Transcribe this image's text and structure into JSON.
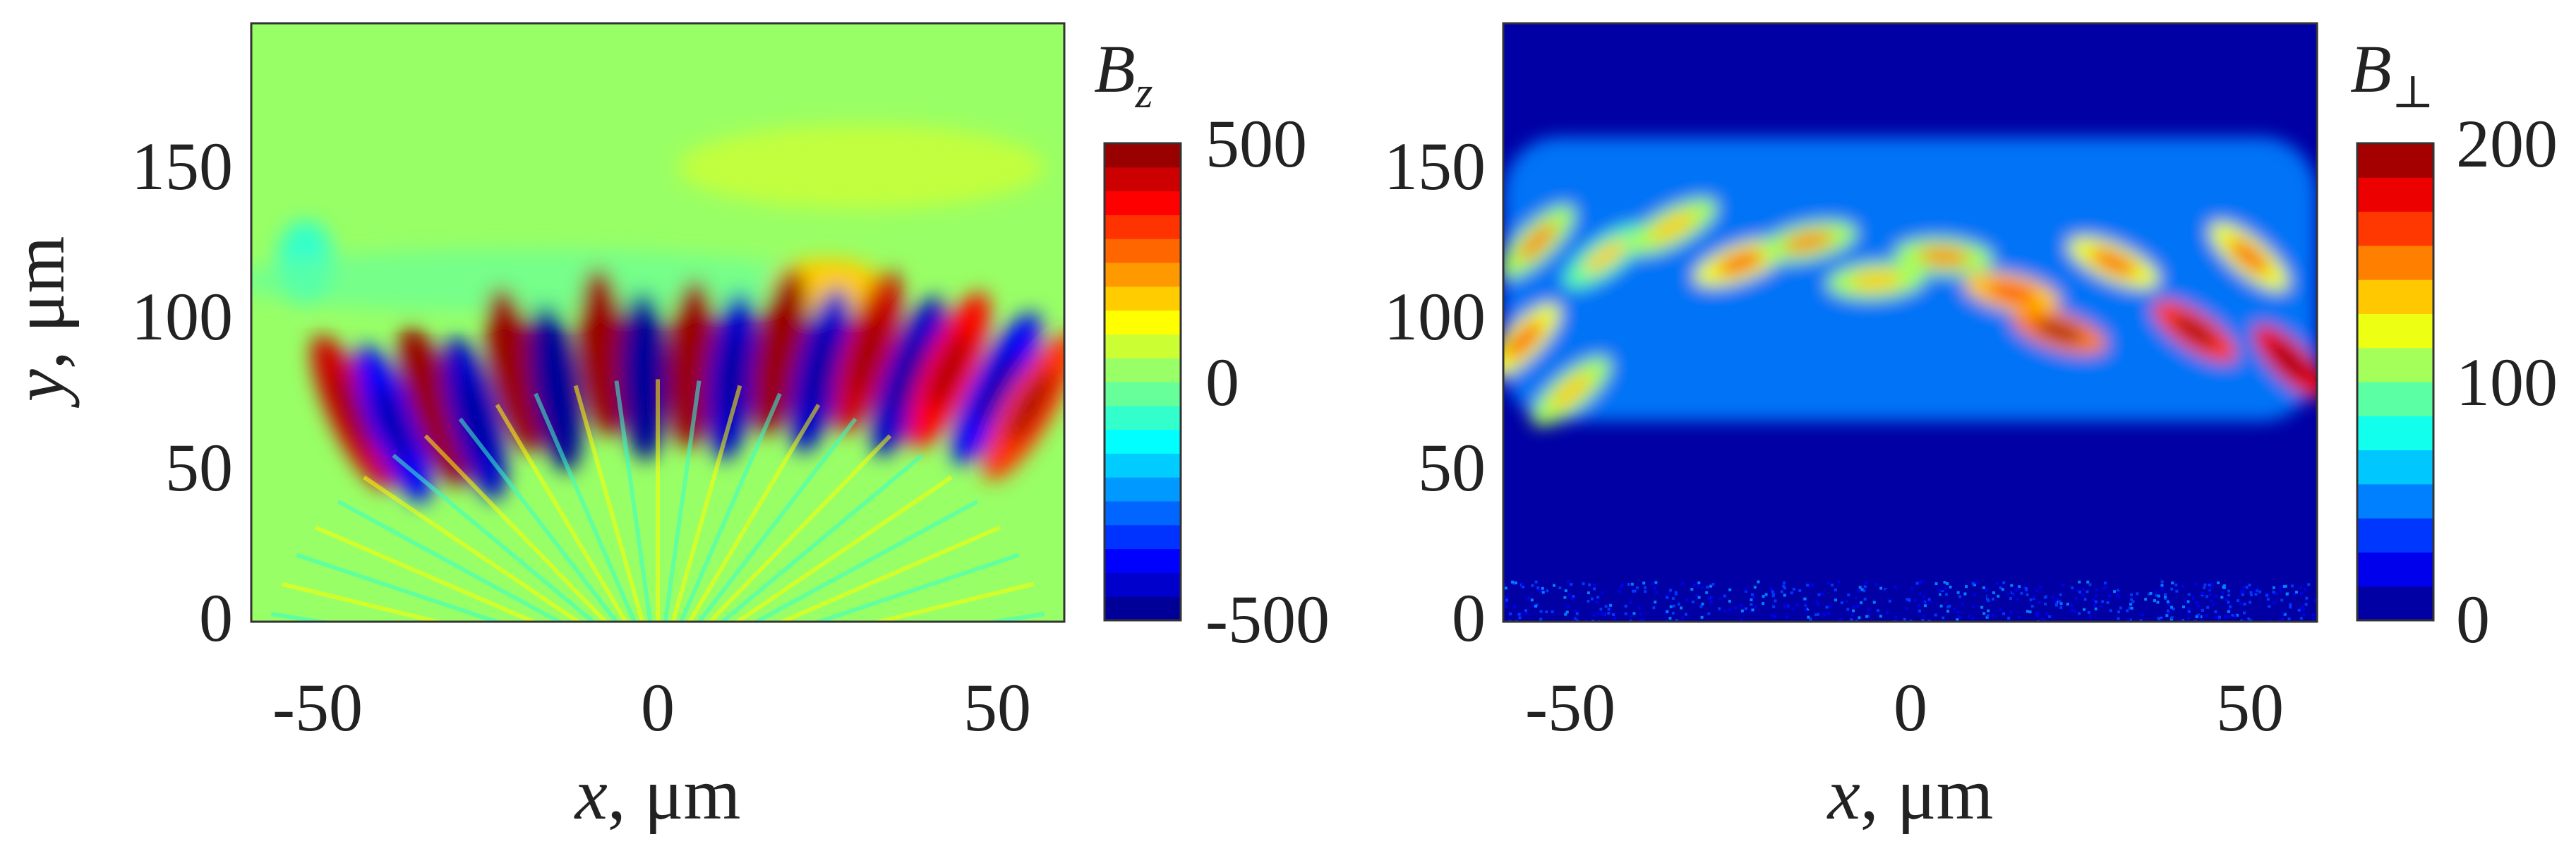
{
  "chart_data": [
    {
      "type": "heatmap",
      "panel": "left",
      "colorbar_title": "B",
      "colorbar_title_sub": "z",
      "colorbar_ticks": [
        "500",
        "0",
        "-500"
      ],
      "colorbar_range": [
        -500,
        500
      ],
      "colorbar_levels": 20,
      "colormap": "jet",
      "xlabel_var": "x",
      "xlabel_unit": ", μm",
      "ylabel_var": "y",
      "ylabel_unit": ", μm",
      "x_ticks": [
        "-50",
        "0",
        "50"
      ],
      "y_ticks": [
        "0",
        "50",
        "100",
        "150"
      ],
      "xlim": [
        -60,
        60
      ],
      "ylim": [
        -2,
        198
      ],
      "background_value": 40,
      "lobes": [
        {
          "x": -45,
          "y": 68,
          "value": 420
        },
        {
          "x": -39,
          "y": 64,
          "value": -380
        },
        {
          "x": -33,
          "y": 70,
          "value": 450
        },
        {
          "x": -27,
          "y": 66,
          "value": -420
        },
        {
          "x": -21,
          "y": 82,
          "value": 480
        },
        {
          "x": -15,
          "y": 76,
          "value": -470
        },
        {
          "x": -8,
          "y": 88,
          "value": 470
        },
        {
          "x": -2,
          "y": 80,
          "value": -460
        },
        {
          "x": 5,
          "y": 84,
          "value": 480
        },
        {
          "x": 11,
          "y": 80,
          "value": -450
        },
        {
          "x": 18,
          "y": 88,
          "value": 470
        },
        {
          "x": 24,
          "y": 82,
          "value": -440
        },
        {
          "x": 31,
          "y": 88,
          "value": 430
        },
        {
          "x": 37,
          "y": 80,
          "value": -420
        },
        {
          "x": 43,
          "y": 82,
          "value": 380
        },
        {
          "x": 50,
          "y": 76,
          "value": -360
        },
        {
          "x": 55,
          "y": 70,
          "value": 300
        }
      ]
    },
    {
      "type": "heatmap",
      "panel": "right",
      "colorbar_title": "B",
      "colorbar_title_sub": "⊥",
      "colorbar_ticks": [
        "200",
        "100",
        "0"
      ],
      "colorbar_range": [
        0,
        200
      ],
      "colorbar_levels": 14,
      "colormap": "jet",
      "xlabel_var": "x",
      "xlabel_unit": ", μm",
      "x_ticks": [
        "-50",
        "0",
        "50"
      ],
      "y_ticks": [
        "0",
        "50",
        "100",
        "150"
      ],
      "xlim": [
        -60,
        60
      ],
      "ylim": [
        -2,
        198
      ],
      "background_value": 0,
      "band_y_range": [
        65,
        160
      ],
      "hotspots": [
        {
          "x": -55,
          "y": 125,
          "value": 110
        },
        {
          "x": -45,
          "y": 120,
          "value": 90
        },
        {
          "x": -35,
          "y": 130,
          "value": 100
        },
        {
          "x": -25,
          "y": 118,
          "value": 120
        },
        {
          "x": -15,
          "y": 125,
          "value": 110
        },
        {
          "x": -5,
          "y": 112,
          "value": 100
        },
        {
          "x": 5,
          "y": 120,
          "value": 110
        },
        {
          "x": 15,
          "y": 108,
          "value": 130
        },
        {
          "x": 22,
          "y": 95,
          "value": 150
        },
        {
          "x": 30,
          "y": 118,
          "value": 120
        },
        {
          "x": 42,
          "y": 95,
          "value": 170
        },
        {
          "x": 50,
          "y": 120,
          "value": 120
        },
        {
          "x": 56,
          "y": 85,
          "value": 180
        },
        {
          "x": -57,
          "y": 92,
          "value": 120
        },
        {
          "x": -50,
          "y": 75,
          "value": 100
        }
      ]
    }
  ]
}
